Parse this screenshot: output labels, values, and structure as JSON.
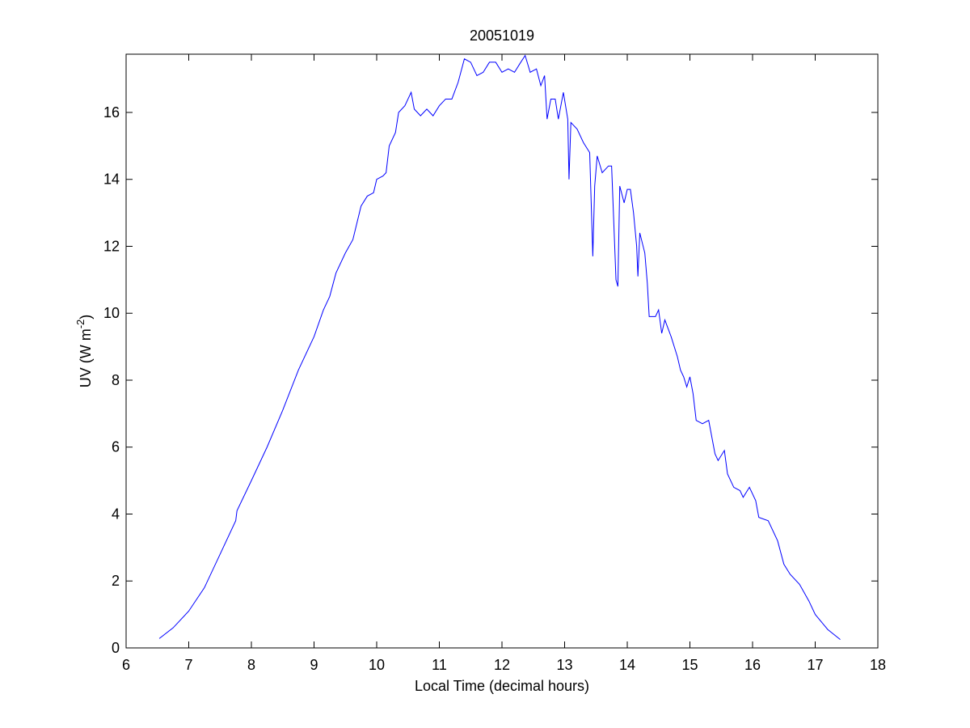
{
  "chart_data": {
    "type": "line",
    "title": "20051019",
    "xlabel": "Local Time (decimal hours)",
    "ylabel": [
      "UV (W m",
      "-2",
      ")"
    ],
    "x": [
      6.53,
      6.75,
      7.0,
      7.25,
      7.5,
      7.75,
      7.77,
      8.0,
      8.25,
      8.5,
      8.75,
      9.0,
      9.15,
      9.25,
      9.35,
      9.5,
      9.62,
      9.75,
      9.85,
      9.95,
      10.0,
      10.1,
      10.15,
      10.2,
      10.3,
      10.35,
      10.45,
      10.55,
      10.6,
      10.7,
      10.8,
      10.9,
      11.0,
      11.1,
      11.2,
      11.3,
      11.4,
      11.5,
      11.6,
      11.7,
      11.8,
      11.9,
      12.0,
      12.1,
      12.2,
      12.3,
      12.37,
      12.45,
      12.55,
      12.62,
      12.68,
      12.72,
      12.78,
      12.85,
      12.9,
      12.98,
      13.05,
      13.07,
      13.1,
      13.2,
      13.3,
      13.4,
      13.45,
      13.48,
      13.52,
      13.6,
      13.7,
      13.75,
      13.82,
      13.85,
      13.88,
      13.95,
      14.0,
      14.05,
      14.1,
      14.15,
      14.17,
      14.2,
      14.28,
      14.32,
      14.35,
      14.45,
      14.5,
      14.55,
      14.6,
      14.7,
      14.8,
      14.85,
      14.9,
      14.95,
      15.0,
      15.05,
      15.1,
      15.2,
      15.3,
      15.4,
      15.45,
      15.55,
      15.6,
      15.7,
      15.8,
      15.85,
      15.95,
      16.05,
      16.1,
      16.25,
      16.4,
      16.5,
      16.6,
      16.75,
      16.9,
      17.0,
      17.2,
      17.4
    ],
    "series": [
      {
        "name": "UV",
        "color": "#0000ff",
        "values": [
          0.28,
          0.6,
          1.1,
          1.8,
          2.8,
          3.8,
          4.1,
          5.0,
          6.0,
          7.1,
          8.3,
          9.3,
          10.1,
          10.5,
          11.2,
          11.8,
          12.2,
          13.2,
          13.5,
          13.6,
          14.0,
          14.1,
          14.2,
          15.0,
          15.4,
          16.0,
          16.2,
          16.6,
          16.1,
          15.9,
          16.1,
          15.9,
          16.2,
          16.4,
          16.4,
          16.9,
          17.6,
          17.5,
          17.1,
          17.2,
          17.5,
          17.5,
          17.2,
          17.3,
          17.2,
          17.5,
          17.7,
          17.2,
          17.3,
          16.8,
          17.1,
          15.8,
          16.4,
          16.4,
          15.8,
          16.6,
          15.8,
          14.0,
          15.7,
          15.5,
          15.1,
          14.8,
          11.7,
          13.8,
          14.7,
          14.2,
          14.4,
          14.4,
          11.0,
          10.8,
          13.8,
          13.3,
          13.7,
          13.7,
          13.0,
          12.0,
          11.1,
          12.4,
          11.8,
          10.9,
          9.9,
          9.9,
          10.1,
          9.4,
          9.8,
          9.3,
          8.7,
          8.3,
          8.1,
          7.8,
          8.1,
          7.6,
          6.8,
          6.7,
          6.8,
          5.8,
          5.6,
          5.9,
          5.2,
          4.8,
          4.7,
          4.5,
          4.8,
          4.4,
          3.9,
          3.8,
          3.2,
          2.5,
          2.2,
          1.9,
          1.4,
          1.0,
          0.55,
          0.25
        ]
      }
    ],
    "xlim": [
      6,
      18
    ],
    "xticks": [
      6,
      7,
      8,
      9,
      10,
      11,
      12,
      13,
      14,
      15,
      16,
      17,
      18
    ],
    "ylim": [
      0,
      17.74
    ],
    "yticks": [
      0,
      2,
      4,
      6,
      8,
      10,
      12,
      14,
      16
    ]
  }
}
